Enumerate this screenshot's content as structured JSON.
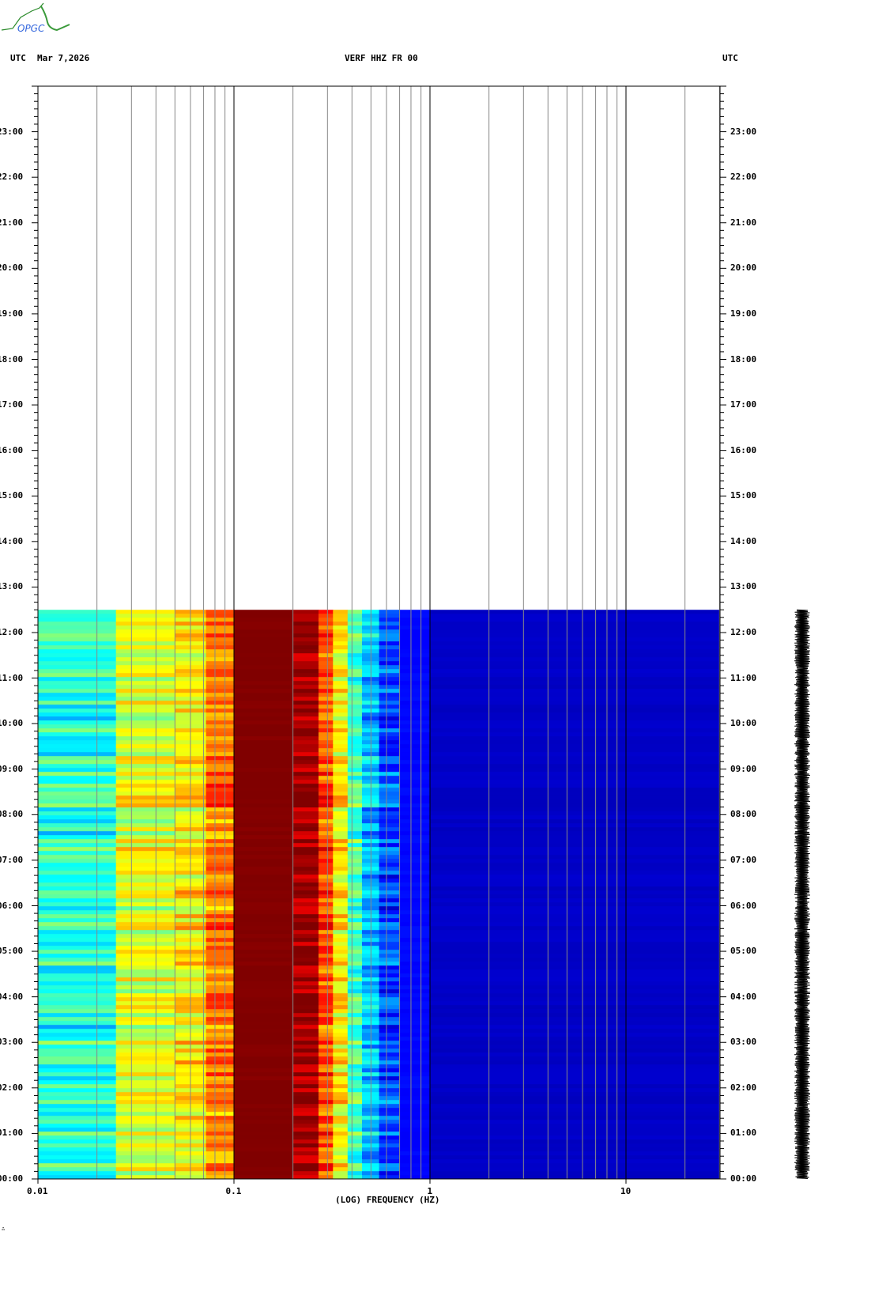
{
  "header": {
    "logo_text": "OPGC",
    "left_tz": "UTC",
    "date": "Mar 7,2026",
    "station": "VERF HHZ FR 00",
    "right_tz": "UTC"
  },
  "footer_mark": "∴",
  "chart_data": {
    "type": "heatmap",
    "title": "VERF HHZ FR 00",
    "xlabel": "(LOG) FREQUENCY (HZ)",
    "x_scale": "log",
    "xlim": [
      0.01,
      30
    ],
    "x_ticks": [
      {
        "value": 0.01,
        "label": "0.01"
      },
      {
        "value": 0.1,
        "label": "0.1"
      },
      {
        "value": 1,
        "label": "1"
      },
      {
        "value": 10,
        "label": "10"
      }
    ],
    "ylabel": "UTC",
    "ylim_hours": [
      0,
      24
    ],
    "y_ticks": [
      "00:00",
      "01:00",
      "02:00",
      "03:00",
      "04:00",
      "05:00",
      "06:00",
      "07:00",
      "08:00",
      "09:00",
      "10:00",
      "11:00",
      "12:00",
      "13:00",
      "14:00",
      "15:00",
      "16:00",
      "17:00",
      "18:00",
      "19:00",
      "20:00",
      "21:00",
      "22:00",
      "23:00"
    ],
    "y_minor_tick_minutes": 10,
    "data_end_hour": 12.5,
    "colormap": "jet",
    "grid": true,
    "band_levels": [
      {
        "f0": 0.01,
        "f1": 0.025,
        "level": 0.42
      },
      {
        "f0": 0.025,
        "f1": 0.05,
        "level": 0.6
      },
      {
        "f0": 0.05,
        "f1": 0.072,
        "level": 0.64
      },
      {
        "f0": 0.072,
        "f1": 0.1,
        "level": 0.76
      },
      {
        "f0": 0.1,
        "f1": 0.2,
        "level": 1.0
      },
      {
        "f0": 0.2,
        "f1": 0.27,
        "level": 0.97
      },
      {
        "f0": 0.27,
        "f1": 0.32,
        "level": 0.8
      },
      {
        "f0": 0.32,
        "f1": 0.38,
        "level": 0.64
      },
      {
        "f0": 0.38,
        "f1": 0.45,
        "level": 0.45
      },
      {
        "f0": 0.45,
        "f1": 0.55,
        "level": 0.32
      },
      {
        "f0": 0.55,
        "f1": 0.7,
        "level": 0.2
      },
      {
        "f0": 0.7,
        "f1": 1.0,
        "level": 0.13
      },
      {
        "f0": 1.0,
        "f1": 30,
        "level": 0.07
      }
    ]
  }
}
